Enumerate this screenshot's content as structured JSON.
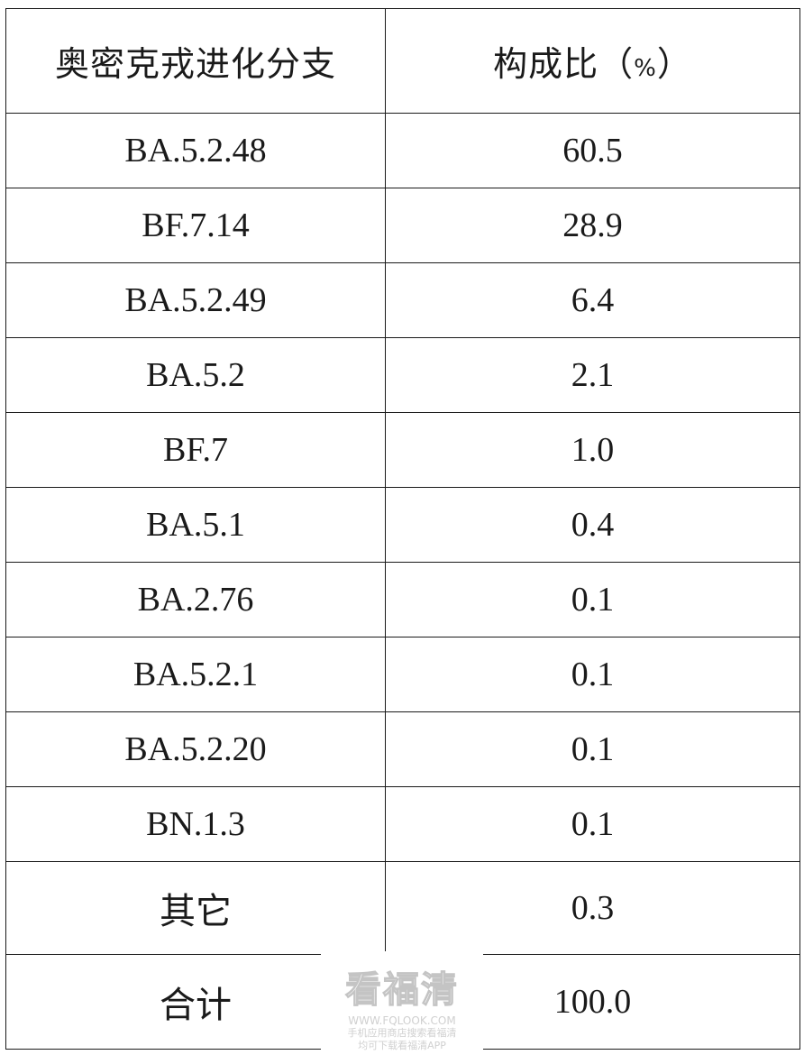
{
  "table": {
    "headers": {
      "branch": "奥密克戎进化分支",
      "ratio": "构成比",
      "ratio_unit_open": "（",
      "ratio_unit": "%",
      "ratio_unit_close": "）"
    },
    "rows": [
      {
        "branch": "BA.5.2.48",
        "ratio": "60.5"
      },
      {
        "branch": "BF.7.14",
        "ratio": "28.9"
      },
      {
        "branch": "BA.5.2.49",
        "ratio": "6.4"
      },
      {
        "branch": "BA.5.2",
        "ratio": "2.1"
      },
      {
        "branch": "BF.7",
        "ratio": "1.0"
      },
      {
        "branch": "BA.5.1",
        "ratio": "0.4"
      },
      {
        "branch": "BA.2.76",
        "ratio": "0.1"
      },
      {
        "branch": "BA.5.2.1",
        "ratio": "0.1"
      },
      {
        "branch": "BA.5.2.20",
        "ratio": "0.1"
      },
      {
        "branch": "BN.1.3",
        "ratio": "0.1"
      }
    ],
    "other": {
      "branch": "其它",
      "ratio": "0.3"
    },
    "total": {
      "branch": "合计",
      "ratio": "100.0"
    }
  },
  "watermark": {
    "logo": "看福清",
    "url": "WWW.FQLOOK.COM",
    "line1": "手机应用商店搜索看福清",
    "line2": "均可下载看福清APP"
  }
}
